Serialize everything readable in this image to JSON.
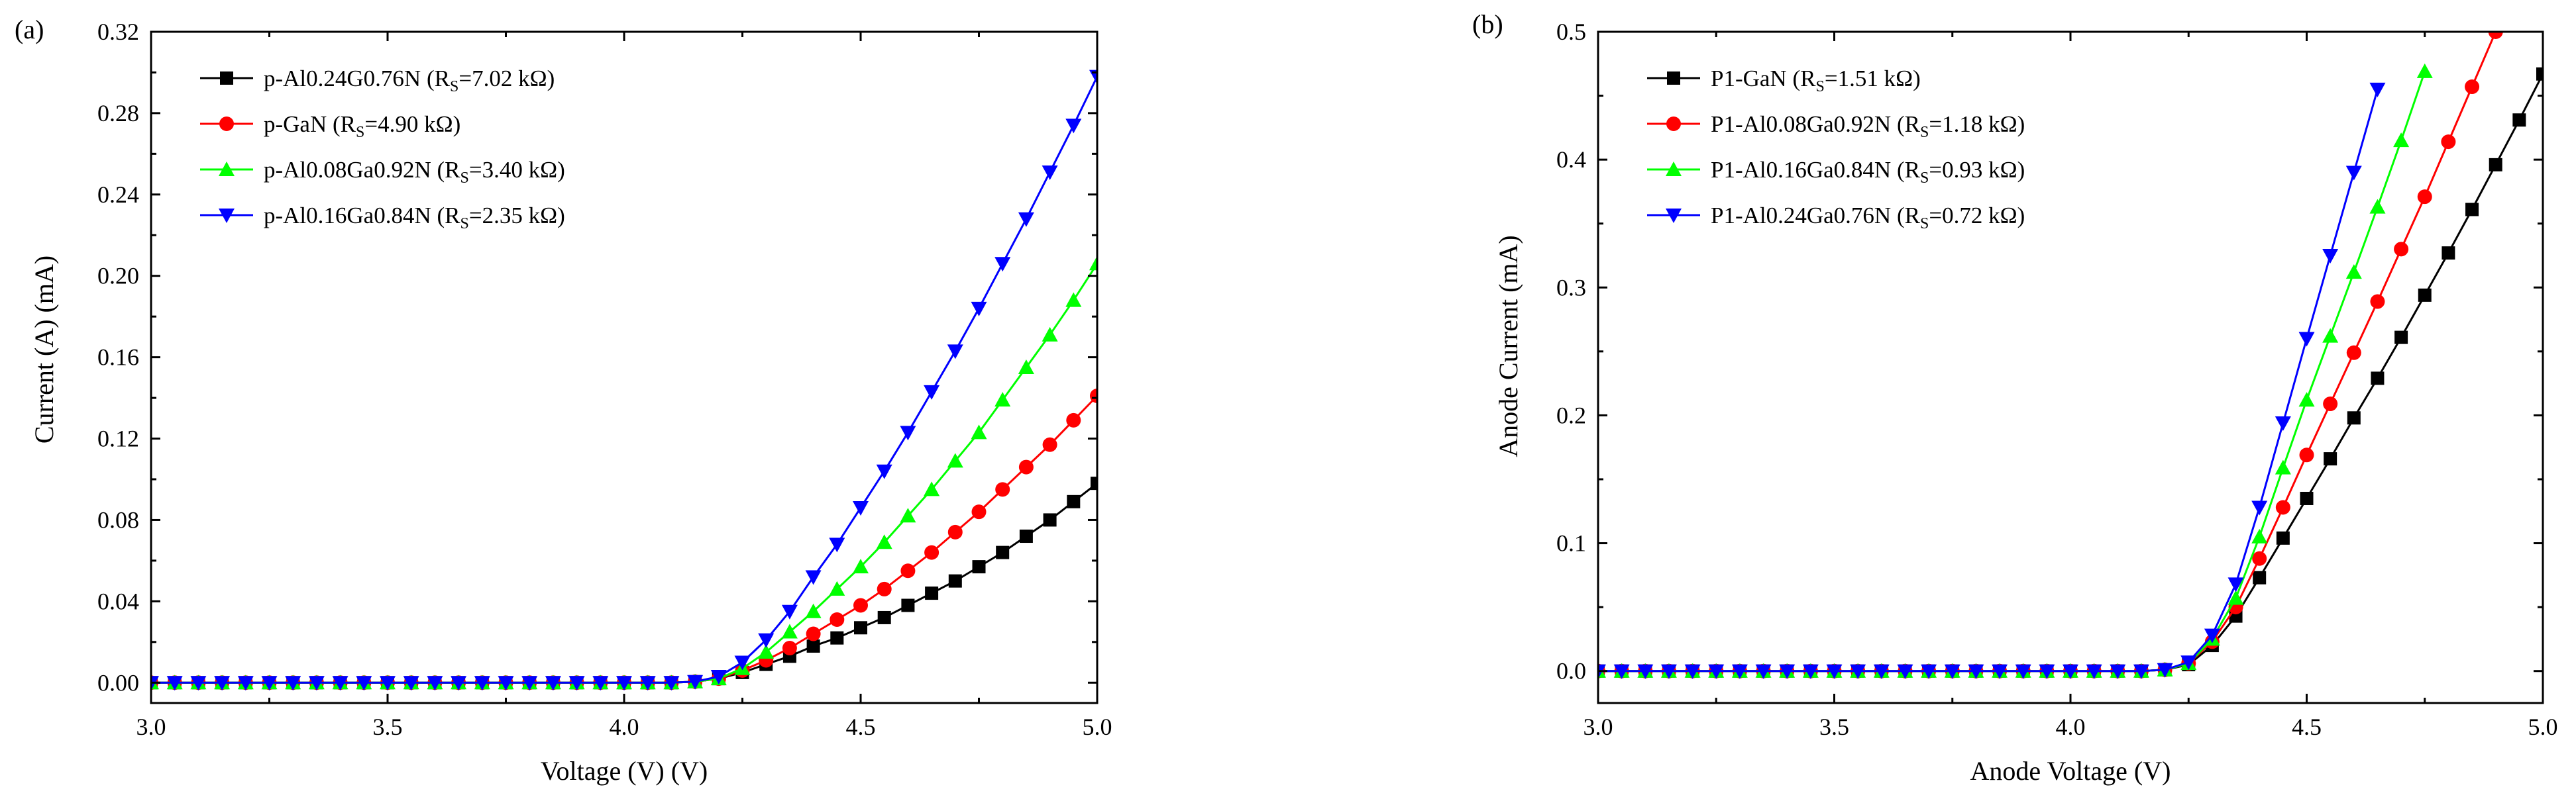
{
  "chart_data": [
    {
      "panel_label": "(a)",
      "type": "line",
      "xlabel": "Voltage (V) (V)",
      "ylabel": "Current (A) (mA)",
      "xlim": [
        3.0,
        5.0
      ],
      "ylim": [
        -0.01,
        0.32
      ],
      "xticks": [
        3.0,
        3.5,
        4.0,
        4.5,
        5.0
      ],
      "xtick_labels": [
        "3.0",
        "3.5",
        "4.0",
        "4.5",
        "5.0"
      ],
      "yticks": [
        0.0,
        0.04,
        0.08,
        0.12,
        0.16,
        0.2,
        0.24,
        0.28,
        0.32
      ],
      "ytick_labels": [
        "0.00",
        "0.04",
        "0.08",
        "0.12",
        "0.16",
        "0.20",
        "0.24",
        "0.28",
        "0.32"
      ],
      "legend_position": "top-left",
      "grid": false,
      "series": [
        {
          "name": "p-Al0.24G0.76N",
          "rs_value": "7.02 kΩ",
          "color": "#000000",
          "marker": "square",
          "x": [
            3.0,
            3.05,
            3.1,
            3.15,
            3.2,
            3.25,
            3.3,
            3.35,
            3.4,
            3.45,
            3.5,
            3.55,
            3.6,
            3.65,
            3.7,
            3.75,
            3.8,
            3.85,
            3.9,
            3.95,
            4.0,
            4.05,
            4.1,
            4.15,
            4.2,
            4.25,
            4.3,
            4.35,
            4.4,
            4.45,
            4.5,
            4.55,
            4.6,
            4.65,
            4.7,
            4.75,
            4.8,
            4.85,
            4.9,
            4.95,
            5.0
          ],
          "y": [
            0,
            0,
            0,
            0,
            0,
            0,
            0,
            0,
            0,
            0,
            0,
            0,
            0,
            0,
            0,
            0,
            0,
            0,
            0,
            0,
            0,
            0,
            0,
            0.0005,
            0.002,
            0.005,
            0.009,
            0.013,
            0.018,
            0.022,
            0.027,
            0.032,
            0.038,
            0.044,
            0.05,
            0.057,
            0.064,
            0.072,
            0.08,
            0.089,
            0.098
          ]
        },
        {
          "name": "p-GaN",
          "rs_value": "4.90 kΩ",
          "color": "#ff0000",
          "marker": "circle",
          "x": [
            3.0,
            3.05,
            3.1,
            3.15,
            3.2,
            3.25,
            3.3,
            3.35,
            3.4,
            3.45,
            3.5,
            3.55,
            3.6,
            3.65,
            3.7,
            3.75,
            3.8,
            3.85,
            3.9,
            3.95,
            4.0,
            4.05,
            4.1,
            4.15,
            4.2,
            4.25,
            4.3,
            4.35,
            4.4,
            4.45,
            4.5,
            4.55,
            4.6,
            4.65,
            4.7,
            4.75,
            4.8,
            4.85,
            4.9,
            4.95,
            5.0
          ],
          "y": [
            0,
            0,
            0,
            0,
            0,
            0,
            0,
            0,
            0,
            0,
            0,
            0,
            0,
            0,
            0,
            0,
            0,
            0,
            0,
            0,
            0,
            0,
            0,
            0.0005,
            0.002,
            0.006,
            0.011,
            0.017,
            0.024,
            0.031,
            0.038,
            0.046,
            0.055,
            0.064,
            0.074,
            0.084,
            0.095,
            0.106,
            0.117,
            0.129,
            0.141
          ]
        },
        {
          "name": "p-Al0.08Ga0.92N",
          "rs_value": "3.40 kΩ",
          "color": "#00ff00",
          "marker": "triangle-up",
          "x": [
            3.0,
            3.05,
            3.1,
            3.15,
            3.2,
            3.25,
            3.3,
            3.35,
            3.4,
            3.45,
            3.5,
            3.55,
            3.6,
            3.65,
            3.7,
            3.75,
            3.8,
            3.85,
            3.9,
            3.95,
            4.0,
            4.05,
            4.1,
            4.15,
            4.2,
            4.25,
            4.3,
            4.35,
            4.4,
            4.45,
            4.5,
            4.55,
            4.6,
            4.65,
            4.7,
            4.75,
            4.8,
            4.85,
            4.9,
            4.95,
            5.0
          ],
          "y": [
            0,
            0,
            0,
            0,
            0,
            0,
            0,
            0,
            0,
            0,
            0,
            0,
            0,
            0,
            0,
            0,
            0,
            0,
            0,
            0,
            0,
            0,
            0,
            0.0005,
            0.002,
            0.007,
            0.015,
            0.025,
            0.035,
            0.046,
            0.057,
            0.069,
            0.082,
            0.095,
            0.109,
            0.123,
            0.139,
            0.155,
            0.171,
            0.188,
            0.206
          ]
        },
        {
          "name": "p-Al0.16Ga0.84N",
          "rs_value": "2.35 kΩ",
          "color": "#0000ff",
          "marker": "triangle-down",
          "x": [
            3.0,
            3.05,
            3.1,
            3.15,
            3.2,
            3.25,
            3.3,
            3.35,
            3.4,
            3.45,
            3.5,
            3.55,
            3.6,
            3.65,
            3.7,
            3.75,
            3.8,
            3.85,
            3.9,
            3.95,
            4.0,
            4.05,
            4.1,
            4.15,
            4.2,
            4.25,
            4.3,
            4.35,
            4.4,
            4.45,
            4.5,
            4.55,
            4.6,
            4.65,
            4.7,
            4.75,
            4.8,
            4.85,
            4.9,
            4.95,
            5.0
          ],
          "y": [
            0,
            0,
            0,
            0,
            0,
            0,
            0,
            0,
            0,
            0,
            0,
            0,
            0,
            0,
            0,
            0,
            0,
            0,
            0,
            0,
            0,
            0,
            0,
            0.0005,
            0.003,
            0.01,
            0.021,
            0.035,
            0.052,
            0.068,
            0.086,
            0.104,
            0.123,
            0.143,
            0.163,
            0.184,
            0.206,
            0.228,
            0.251,
            0.274,
            0.298
          ]
        }
      ]
    },
    {
      "panel_label": "(b)",
      "type": "line",
      "xlabel": "Anode Voltage (V)",
      "ylabel": "Anode Current (mA)",
      "xlim": [
        3.0,
        5.0
      ],
      "ylim": [
        -0.025,
        0.5
      ],
      "xticks": [
        3.0,
        3.5,
        4.0,
        4.5,
        5.0
      ],
      "xtick_labels": [
        "3.0",
        "3.5",
        "4.0",
        "4.5",
        "5.0"
      ],
      "yticks": [
        0.0,
        0.1,
        0.2,
        0.3,
        0.4,
        0.5
      ],
      "ytick_labels": [
        "0.0",
        "0.1",
        "0.2",
        "0.3",
        "0.4",
        "0.5"
      ],
      "legend_position": "top-left",
      "grid": false,
      "series": [
        {
          "name": "P1-GaN",
          "rs_value": "1.51 kΩ",
          "color": "#000000",
          "marker": "square",
          "x": [
            3.0,
            3.05,
            3.1,
            3.15,
            3.2,
            3.25,
            3.3,
            3.35,
            3.4,
            3.45,
            3.5,
            3.55,
            3.6,
            3.65,
            3.7,
            3.75,
            3.8,
            3.85,
            3.9,
            3.95,
            4.0,
            4.05,
            4.1,
            4.15,
            4.2,
            4.25,
            4.3,
            4.35,
            4.4,
            4.45,
            4.5,
            4.55,
            4.6,
            4.65,
            4.7,
            4.75,
            4.8,
            4.85,
            4.9,
            4.95,
            5.0
          ],
          "y": [
            0,
            0,
            0,
            0,
            0,
            0,
            0,
            0,
            0,
            0,
            0,
            0,
            0,
            0,
            0,
            0,
            0,
            0,
            0,
            0,
            0,
            0,
            0,
            0,
            0.001,
            0.005,
            0.02,
            0.043,
            0.073,
            0.104,
            0.135,
            0.166,
            0.198,
            0.229,
            0.261,
            0.294,
            0.327,
            0.361,
            0.396,
            0.431,
            0.467
          ]
        },
        {
          "name": "P1-Al0.08Ga0.92N",
          "rs_value": "1.18 kΩ",
          "color": "#ff0000",
          "marker": "circle",
          "x": [
            3.0,
            3.05,
            3.1,
            3.15,
            3.2,
            3.25,
            3.3,
            3.35,
            3.4,
            3.45,
            3.5,
            3.55,
            3.6,
            3.65,
            3.7,
            3.75,
            3.8,
            3.85,
            3.9,
            3.95,
            4.0,
            4.05,
            4.1,
            4.15,
            4.2,
            4.25,
            4.3,
            4.35,
            4.4,
            4.45,
            4.5,
            4.55,
            4.6,
            4.65,
            4.7,
            4.75,
            4.8,
            4.85,
            4.9
          ],
          "y": [
            0,
            0,
            0,
            0,
            0,
            0,
            0,
            0,
            0,
            0,
            0,
            0,
            0,
            0,
            0,
            0,
            0,
            0,
            0,
            0,
            0,
            0,
            0,
            0,
            0.001,
            0.006,
            0.023,
            0.05,
            0.088,
            0.128,
            0.169,
            0.209,
            0.249,
            0.289,
            0.33,
            0.371,
            0.414,
            0.457,
            0.5
          ]
        },
        {
          "name": "P1-Al0.16Ga0.84N",
          "rs_value": "0.93 kΩ",
          "color": "#00ff00",
          "marker": "triangle-up",
          "x": [
            3.0,
            3.05,
            3.1,
            3.15,
            3.2,
            3.25,
            3.3,
            3.35,
            3.4,
            3.45,
            3.5,
            3.55,
            3.6,
            3.65,
            3.7,
            3.75,
            3.8,
            3.85,
            3.9,
            3.95,
            4.0,
            4.05,
            4.1,
            4.15,
            4.2,
            4.25,
            4.3,
            4.35,
            4.4,
            4.45,
            4.5,
            4.55,
            4.6,
            4.65,
            4.7,
            4.75
          ],
          "y": [
            0,
            0,
            0,
            0,
            0,
            0,
            0,
            0,
            0,
            0,
            0,
            0,
            0,
            0,
            0,
            0,
            0,
            0,
            0,
            0,
            0,
            0,
            0,
            0,
            0.001,
            0.006,
            0.025,
            0.057,
            0.105,
            0.159,
            0.212,
            0.262,
            0.312,
            0.363,
            0.415,
            0.469
          ]
        },
        {
          "name": "P1-Al0.24Ga0.76N",
          "rs_value": "0.72 kΩ",
          "color": "#0000ff",
          "marker": "triangle-down",
          "x": [
            3.0,
            3.05,
            3.1,
            3.15,
            3.2,
            3.25,
            3.3,
            3.35,
            3.4,
            3.45,
            3.5,
            3.55,
            3.6,
            3.65,
            3.7,
            3.75,
            3.8,
            3.85,
            3.9,
            3.95,
            4.0,
            4.05,
            4.1,
            4.15,
            4.2,
            4.25,
            4.3,
            4.35,
            4.4,
            4.45,
            4.5,
            4.55,
            4.6,
            4.65
          ],
          "y": [
            0,
            0,
            0,
            0,
            0,
            0,
            0,
            0,
            0,
            0,
            0,
            0,
            0,
            0,
            0,
            0,
            0,
            0,
            0,
            0,
            0,
            0,
            0,
            0,
            0.001,
            0.007,
            0.028,
            0.068,
            0.128,
            0.194,
            0.26,
            0.325,
            0.39,
            0.455
          ]
        }
      ]
    }
  ]
}
